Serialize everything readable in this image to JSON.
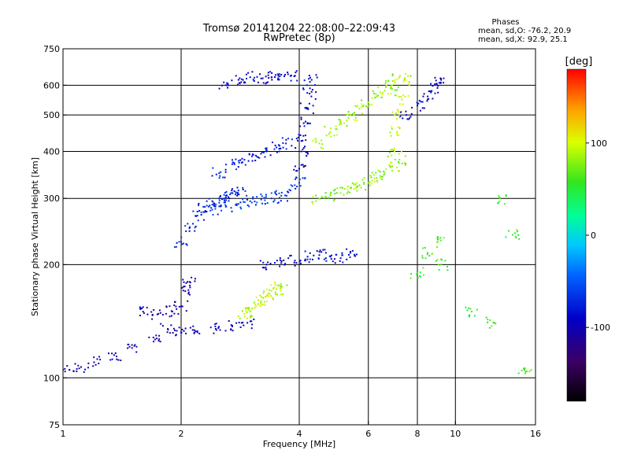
{
  "title_line1": "Tromsø 20141204 22:08:00–22:09:43",
  "title_line2": "RwPretec (8p)",
  "phases": {
    "heading": "Phases",
    "line_o": "mean, sd,O: -76.2, 20.9",
    "line_x": "mean, sd,X:  92.9, 25.1"
  },
  "chart_data": {
    "type": "scatter",
    "xlabel": "Frequency [MHz]",
    "ylabel": "Stationary phase Virtual Height [km]",
    "x_scale": "log",
    "y_scale": "log",
    "xlim": [
      1,
      16
    ],
    "ylim": [
      75,
      750
    ],
    "x_ticks": [
      1,
      2,
      4,
      6,
      8,
      10,
      16
    ],
    "x_tick_labels": [
      "1",
      "2",
      "4",
      "6",
      "8",
      "10",
      "16"
    ],
    "y_ticks": [
      75,
      100,
      200,
      300,
      400,
      500,
      600,
      750
    ],
    "y_tick_labels": [
      "75",
      "100",
      "200",
      "300",
      "400",
      "500",
      "600",
      "750"
    ],
    "x_gridlines": [
      2,
      4,
      6,
      8,
      10
    ],
    "y_gridlines": [
      100,
      200,
      300,
      400,
      500,
      600
    ],
    "grid": true,
    "colorbar": {
      "label": "[deg]",
      "range": [
        -180,
        180
      ],
      "ticks": [
        100,
        0,
        -100
      ],
      "tick_labels": [
        "100",
        "0",
        "-100"
      ],
      "colormap": "rainbow (black-purple-blue-cyan-green-yellow-orange-red)"
    },
    "clusters": [
      {
        "name": "o-trace-low",
        "f": [
          1.0,
          1.1,
          1.2,
          1.35,
          1.5,
          1.7,
          1.85,
          2.0,
          2.2,
          2.45,
          2.7,
          2.95
        ],
        "h": [
          105,
          106,
          110,
          115,
          120,
          128,
          135,
          132,
          133,
          135,
          137,
          140
        ],
        "phase": -100
      },
      {
        "name": "o-trace-e-layer-cusp",
        "f": [
          1.6,
          1.75,
          1.9,
          2.0,
          2.05,
          2.1
        ],
        "h": [
          150,
          148,
          150,
          155,
          170,
          180
        ],
        "phase": -105
      },
      {
        "name": "o-trace-f-rise",
        "f": [
          2.0,
          2.1,
          2.2,
          2.3,
          2.4,
          2.5,
          2.6,
          2.7,
          2.8
        ],
        "h": [
          230,
          250,
          270,
          285,
          295,
          300,
          305,
          310,
          315
        ],
        "phase": -75
      },
      {
        "name": "o-trace-f-main",
        "f": [
          2.4,
          2.6,
          2.8,
          3.0,
          3.2,
          3.4,
          3.6,
          3.8,
          4.0
        ],
        "h": [
          280,
          285,
          290,
          295,
          298,
          300,
          305,
          315,
          330
        ],
        "phase": -65
      },
      {
        "name": "o-trace-f-critical",
        "f": [
          4.0,
          4.05,
          4.1,
          4.15,
          4.2,
          4.25,
          4.3
        ],
        "h": [
          360,
          400,
          440,
          480,
          520,
          570,
          620
        ],
        "phase": -95
      },
      {
        "name": "o-trace-upper",
        "f": [
          2.6,
          2.8,
          3.0,
          3.2,
          3.4,
          3.6,
          3.8
        ],
        "h": [
          600,
          620,
          630,
          625,
          630,
          640,
          635
        ],
        "phase": -90
      },
      {
        "name": "o-trace-mid-diffuse",
        "f": [
          2.5,
          2.7,
          2.9,
          3.1,
          3.3,
          3.5,
          3.7
        ],
        "h": [
          350,
          370,
          380,
          390,
          400,
          410,
          420
        ],
        "phase": -80
      },
      {
        "name": "o-trace-200km",
        "f": [
          3.3,
          3.6,
          3.9,
          4.2,
          4.5,
          4.8,
          5.1,
          5.4
        ],
        "h": [
          200,
          202,
          205,
          210,
          212,
          210,
          208,
          215
        ],
        "phase": -90
      },
      {
        "name": "x-trace-low",
        "f": [
          2.9,
          3.0,
          3.1,
          3.2,
          3.3,
          3.4,
          3.5,
          3.6
        ],
        "h": [
          148,
          150,
          155,
          160,
          165,
          170,
          172,
          175
        ],
        "phase": 95
      },
      {
        "name": "x-trace-f",
        "f": [
          4.5,
          4.8,
          5.1,
          5.4,
          5.7,
          6.0,
          6.3,
          6.6,
          6.9,
          7.2
        ],
        "h": [
          300,
          305,
          310,
          320,
          325,
          330,
          340,
          350,
          365,
          380
        ],
        "phase": 80
      },
      {
        "name": "x-trace-upper",
        "f": [
          4.5,
          4.8,
          5.1,
          5.4,
          5.7,
          6.0,
          6.3,
          6.6,
          6.9,
          7.2
        ],
        "h": [
          420,
          450,
          480,
          500,
          520,
          540,
          560,
          580,
          600,
          630
        ],
        "phase": 85
      },
      {
        "name": "x-trace-critical",
        "f": [
          7.0,
          7.1,
          7.2,
          7.3,
          7.4
        ],
        "h": [
          400,
          450,
          500,
          550,
          620
        ],
        "phase": 90
      },
      {
        "name": "scattered-high-freq",
        "f": [
          8.0,
          8.5,
          9.0,
          9.2,
          11.0,
          12.5,
          13.0,
          14.0,
          15.0
        ],
        "h": [
          190,
          215,
          230,
          200,
          150,
          140,
          300,
          240,
          105
        ],
        "phase": 60
      },
      {
        "name": "upper-right-trace",
        "f": [
          7.5,
          8.0,
          8.5,
          9.0,
          9.2
        ],
        "h": [
          500,
          530,
          560,
          590,
          620
        ],
        "phase": -95
      }
    ]
  }
}
